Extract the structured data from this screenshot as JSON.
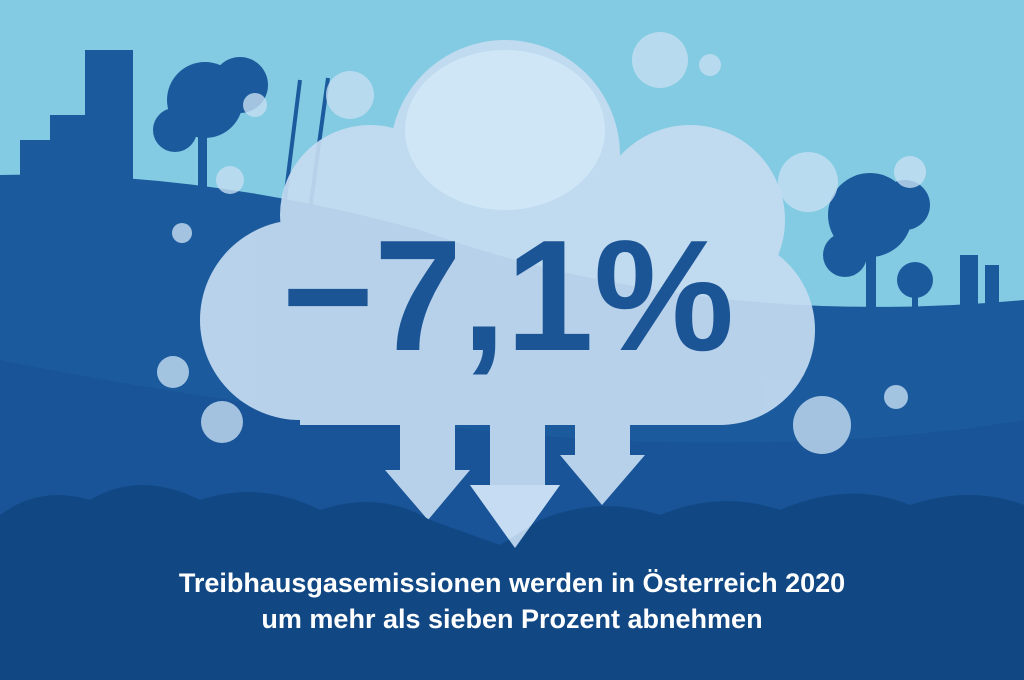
{
  "headline": "−7,1%",
  "caption": [
    "Treibhausgasemissionen werden in Österreich 2020",
    "um mehr als sieben Prozent abnehmen"
  ]
}
